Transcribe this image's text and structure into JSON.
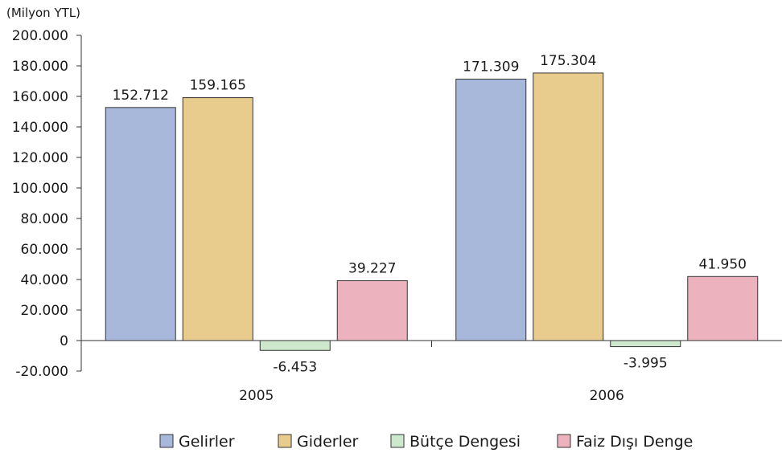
{
  "chart_data": {
    "type": "bar",
    "unit_label": "(Milyon YTL)",
    "categories": [
      "2005",
      "2006"
    ],
    "series": [
      {
        "name": "Gelirler",
        "color": "#a7b8db",
        "values": [
          152712,
          171309
        ],
        "labels": [
          "152.712",
          "171.309"
        ]
      },
      {
        "name": "Giderler",
        "color": "#e8cc8d",
        "values": [
          159165,
          175304
        ],
        "labels": [
          "159.165",
          "175.304"
        ]
      },
      {
        "name": "Bütçe Dengesi",
        "color": "#cde8cc",
        "values": [
          -6453,
          -3995
        ],
        "labels": [
          "-6.453",
          "-3.995"
        ]
      },
      {
        "name": "Faiz Dışı Denge",
        "color": "#ecb3bf",
        "values": [
          39227,
          41950
        ],
        "labels": [
          "39.227",
          "41.950"
        ]
      }
    ],
    "ylim": [
      -20000,
      200000
    ],
    "y_ticks": [
      {
        "value": 200000,
        "label": "200.000"
      },
      {
        "value": 180000,
        "label": "180.000"
      },
      {
        "value": 160000,
        "label": "160.000"
      },
      {
        "value": 140000,
        "label": "140.000"
      },
      {
        "value": 120000,
        "label": "120.000"
      },
      {
        "value": 100000,
        "label": "100.000"
      },
      {
        "value": 80000,
        "label": "80.000"
      },
      {
        "value": 60000,
        "label": "60.000"
      },
      {
        "value": 40000,
        "label": "40.000"
      },
      {
        "value": 20000,
        "label": "20.000"
      },
      {
        "value": 0,
        "label": "0"
      },
      {
        "value": -20000,
        "label": "-20.000"
      }
    ],
    "grid": false,
    "legend_position": "bottom"
  }
}
